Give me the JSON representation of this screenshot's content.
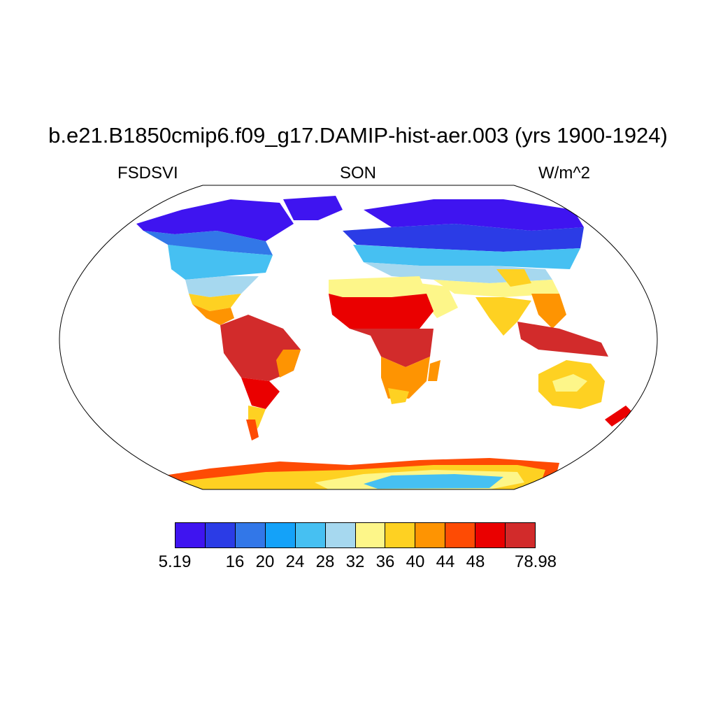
{
  "header": {
    "title": "b.e21.B1850cmip6.f09_g17.DAMIP-hist-aer.003 (yrs 1900-1924)",
    "left_label": "FSDSVI",
    "center_label": "SON",
    "right_label": "W/m^2"
  },
  "colorbar": {
    "colors": [
      "#3f14f0",
      "#2b3ce6",
      "#3277e8",
      "#14a2f9",
      "#46c0f2",
      "#a6d8ef",
      "#fdf689",
      "#fed122",
      "#fe9402",
      "#fe4b04",
      "#ea0000",
      "#d22b2b"
    ],
    "labels": [
      "5.19",
      "",
      "16",
      "20",
      "24",
      "28",
      "32",
      "36",
      "40",
      "44",
      "48",
      "",
      "78.98"
    ]
  },
  "map": {
    "projection": "Robinson",
    "field": "FSDSVI",
    "season": "SON",
    "units": "W/m^2"
  }
}
